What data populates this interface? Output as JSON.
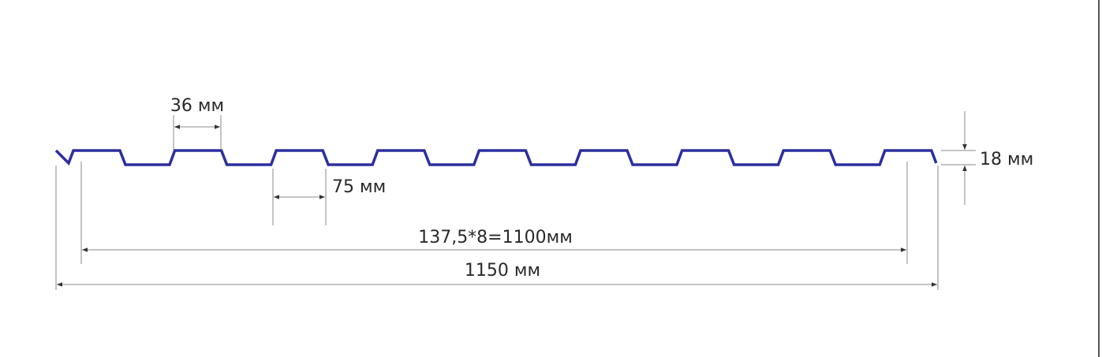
{
  "diagram": {
    "profile_color": "#2b2f9e",
    "rib_count": 9,
    "labels": {
      "rib_top_width": "36 мм",
      "rib_bottom_gap": "75 мм",
      "height": "18 мм",
      "working_width": "137,5*8=1100мм",
      "total_width": "1150 мм"
    }
  }
}
